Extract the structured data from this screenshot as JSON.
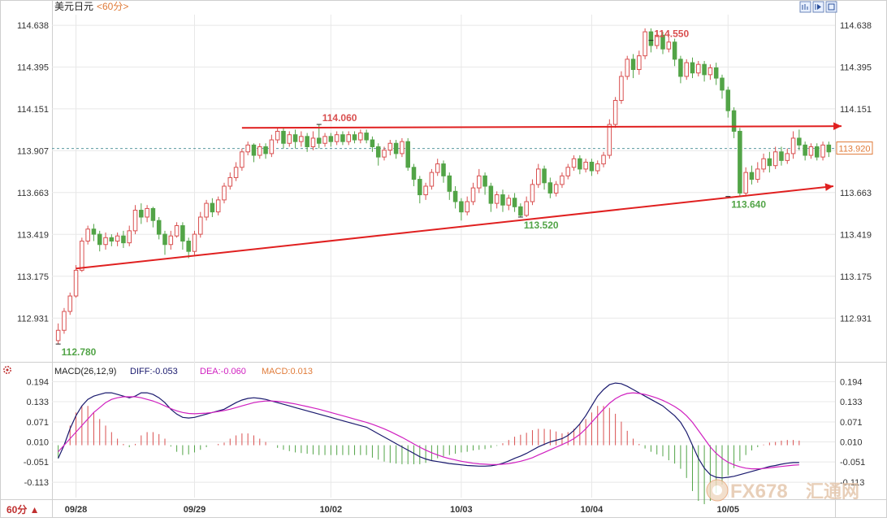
{
  "header": {
    "instrument": "美元日元",
    "period": "<60分>"
  },
  "period_selector": {
    "label": "60分 ▲"
  },
  "watermark": {
    "brand": "FX678",
    "cn": "汇通网"
  },
  "colors": {
    "up": "#d94f4f",
    "down": "#52a447",
    "trendline": "#e02020",
    "diff": "#1a1a6e",
    "dea": "#d020c0",
    "current_price": "#e07b39",
    "dashed": "#5a9aa0",
    "grid": "#e8e8e8",
    "axis_text": "#333333"
  },
  "chart_data": [
    {
      "type": "candlestick",
      "title": "美元日元 <60分>",
      "ylim": [
        112.7,
        114.7
      ],
      "y_ticks": [
        "114.638",
        "114.395",
        "114.151",
        "113.907",
        "113.663",
        "113.419",
        "113.175",
        "112.931"
      ],
      "x_ticks": [
        "09/28",
        "09/29",
        "10/02",
        "10/03",
        "10/04",
        "10/05"
      ],
      "current_price": "113.920",
      "annotations": [
        {
          "label": "112.780",
          "value": 112.78,
          "color": "green"
        },
        {
          "label": "114.060",
          "value": 114.06,
          "color": "red"
        },
        {
          "label": "113.520",
          "value": 113.52,
          "color": "green"
        },
        {
          "label": "114.550",
          "value": 114.55,
          "color": "red"
        },
        {
          "label": "113.640",
          "value": 113.64,
          "color": "green"
        }
      ],
      "trendlines": [
        {
          "name": "resistance",
          "from": 114.04,
          "to": 114.05
        },
        {
          "name": "support",
          "from": 113.22,
          "to": 113.7
        }
      ],
      "candles": [
        [
          112.8,
          112.86,
          112.78,
          112.9
        ],
        [
          112.86,
          112.97,
          112.84,
          112.99
        ],
        [
          112.97,
          113.06,
          112.95,
          113.08
        ],
        [
          113.06,
          113.21,
          113.05,
          113.24
        ],
        [
          113.21,
          113.38,
          113.2,
          113.4
        ],
        [
          113.38,
          113.45,
          113.36,
          113.47
        ],
        [
          113.45,
          113.42,
          113.38,
          113.48
        ],
        [
          113.42,
          113.36,
          113.32,
          113.44
        ],
        [
          113.36,
          113.4,
          113.33,
          113.43
        ],
        [
          113.4,
          113.38,
          113.35,
          113.42
        ],
        [
          113.38,
          113.41,
          113.35,
          113.43
        ],
        [
          113.41,
          113.37,
          113.34,
          113.44
        ],
        [
          113.37,
          113.44,
          113.35,
          113.47
        ],
        [
          113.44,
          113.56,
          113.42,
          113.59
        ],
        [
          113.56,
          113.52,
          113.48,
          113.6
        ],
        [
          113.52,
          113.57,
          113.49,
          113.59
        ],
        [
          113.57,
          113.5,
          113.46,
          113.58
        ],
        [
          113.5,
          113.42,
          113.39,
          113.52
        ],
        [
          113.42,
          113.36,
          113.3,
          113.44
        ],
        [
          113.36,
          113.41,
          113.33,
          113.44
        ],
        [
          113.41,
          113.47,
          113.4,
          113.49
        ],
        [
          113.47,
          113.38,
          113.33,
          113.49
        ],
        [
          113.38,
          113.32,
          113.28,
          113.4
        ],
        [
          113.32,
          113.42,
          113.3,
          113.44
        ],
        [
          113.42,
          113.52,
          113.4,
          113.55
        ],
        [
          113.52,
          113.6,
          113.5,
          113.62
        ],
        [
          113.6,
          113.55,
          113.52,
          113.63
        ],
        [
          113.55,
          113.62,
          113.53,
          113.64
        ],
        [
          113.62,
          113.7,
          113.6,
          113.72
        ],
        [
          113.7,
          113.75,
          113.68,
          113.78
        ],
        [
          113.75,
          113.81,
          113.73,
          113.84
        ],
        [
          113.81,
          113.9,
          113.79,
          113.92
        ],
        [
          113.9,
          113.94,
          113.88,
          113.96
        ],
        [
          113.94,
          113.88,
          113.84,
          113.95
        ],
        [
          113.88,
          113.93,
          113.86,
          113.95
        ],
        [
          113.93,
          113.89,
          113.86,
          113.95
        ],
        [
          113.89,
          113.97,
          113.87,
          114.0
        ],
        [
          113.97,
          114.02,
          113.95,
          114.04
        ],
        [
          114.02,
          113.95,
          113.92,
          114.04
        ],
        [
          113.95,
          114.0,
          113.93,
          114.02
        ],
        [
          114.0,
          113.96,
          113.92,
          114.03
        ],
        [
          113.96,
          113.99,
          113.93,
          114.02
        ],
        [
          113.99,
          113.93,
          113.9,
          114.01
        ],
        [
          113.93,
          113.98,
          113.91,
          114.02
        ],
        [
          113.98,
          113.95,
          113.92,
          114.06
        ],
        [
          113.95,
          113.99,
          113.93,
          114.01
        ],
        [
          113.99,
          113.96,
          113.93,
          114.01
        ],
        [
          113.96,
          114.0,
          113.94,
          114.02
        ],
        [
          114.0,
          113.96,
          113.94,
          114.02
        ],
        [
          113.96,
          114.0,
          113.94,
          114.02
        ],
        [
          114.0,
          113.97,
          113.95,
          114.02
        ],
        [
          113.97,
          114.01,
          113.95,
          114.03
        ],
        [
          114.01,
          113.97,
          113.95,
          114.03
        ],
        [
          113.97,
          113.93,
          113.9,
          113.99
        ],
        [
          113.93,
          113.87,
          113.82,
          113.95
        ],
        [
          113.87,
          113.91,
          113.85,
          113.93
        ],
        [
          113.91,
          113.95,
          113.88,
          113.97
        ],
        [
          113.95,
          113.89,
          113.86,
          113.97
        ],
        [
          113.89,
          113.96,
          113.87,
          113.98
        ],
        [
          113.96,
          113.81,
          113.79,
          113.98
        ],
        [
          113.81,
          113.74,
          113.7,
          113.83
        ],
        [
          113.74,
          113.65,
          113.6,
          113.76
        ],
        [
          113.65,
          113.7,
          113.62,
          113.72
        ],
        [
          113.7,
          113.78,
          113.68,
          113.8
        ],
        [
          113.78,
          113.83,
          113.76,
          113.86
        ],
        [
          113.83,
          113.76,
          113.72,
          113.85
        ],
        [
          113.76,
          113.67,
          113.62,
          113.78
        ],
        [
          113.67,
          113.61,
          113.57,
          113.7
        ],
        [
          113.61,
          113.55,
          113.5,
          113.63
        ],
        [
          113.55,
          113.61,
          113.53,
          113.64
        ],
        [
          113.61,
          113.69,
          113.59,
          113.72
        ],
        [
          113.69,
          113.76,
          113.66,
          113.8
        ],
        [
          113.76,
          113.7,
          113.65,
          113.78
        ],
        [
          113.7,
          113.6,
          113.55,
          113.72
        ],
        [
          113.6,
          113.65,
          113.57,
          113.67
        ],
        [
          113.65,
          113.59,
          113.55,
          113.68
        ],
        [
          113.59,
          113.63,
          113.56,
          113.65
        ],
        [
          113.63,
          113.58,
          113.55,
          113.66
        ],
        [
          113.58,
          113.53,
          113.52,
          113.6
        ],
        [
          113.53,
          113.61,
          113.52,
          113.64
        ],
        [
          113.61,
          113.71,
          113.59,
          113.74
        ],
        [
          113.71,
          113.8,
          113.69,
          113.83
        ],
        [
          113.8,
          113.72,
          113.68,
          113.82
        ],
        [
          113.72,
          113.66,
          113.63,
          113.75
        ],
        [
          113.66,
          113.71,
          113.64,
          113.73
        ],
        [
          113.71,
          113.76,
          113.69,
          113.78
        ],
        [
          113.76,
          113.81,
          113.74,
          113.83
        ],
        [
          113.81,
          113.86,
          113.79,
          113.88
        ],
        [
          113.86,
          113.8,
          113.77,
          113.88
        ],
        [
          113.8,
          113.84,
          113.78,
          113.86
        ],
        [
          113.84,
          113.79,
          113.76,
          113.86
        ],
        [
          113.79,
          113.83,
          113.77,
          113.85
        ],
        [
          113.83,
          113.88,
          113.81,
          113.9
        ],
        [
          113.88,
          114.06,
          113.86,
          114.09
        ],
        [
          114.06,
          114.2,
          114.04,
          114.22
        ],
        [
          114.2,
          114.34,
          114.18,
          114.37
        ],
        [
          114.34,
          114.44,
          114.32,
          114.46
        ],
        [
          114.44,
          114.38,
          114.33,
          114.47
        ],
        [
          114.38,
          114.46,
          114.35,
          114.49
        ],
        [
          114.46,
          114.6,
          114.44,
          114.62
        ],
        [
          114.6,
          114.52,
          114.48,
          114.62
        ],
        [
          114.52,
          114.58,
          114.5,
          114.6
        ],
        [
          114.58,
          114.5,
          114.47,
          114.6
        ],
        [
          114.5,
          114.54,
          114.48,
          114.57
        ],
        [
          114.54,
          114.44,
          114.4,
          114.56
        ],
        [
          114.44,
          114.34,
          114.3,
          114.46
        ],
        [
          114.34,
          114.42,
          114.32,
          114.44
        ],
        [
          114.42,
          114.36,
          114.33,
          114.45
        ],
        [
          114.36,
          114.41,
          114.34,
          114.43
        ],
        [
          114.41,
          114.35,
          114.31,
          114.43
        ],
        [
          114.35,
          114.39,
          114.32,
          114.41
        ],
        [
          114.39,
          114.33,
          114.29,
          114.42
        ],
        [
          114.33,
          114.26,
          114.21,
          114.35
        ],
        [
          114.26,
          114.14,
          114.1,
          114.28
        ],
        [
          114.14,
          114.02,
          113.98,
          114.16
        ],
        [
          114.02,
          113.66,
          113.64,
          114.04
        ],
        [
          113.66,
          113.78,
          113.64,
          113.81
        ],
        [
          113.78,
          113.74,
          113.71,
          113.82
        ],
        [
          113.74,
          113.8,
          113.72,
          113.84
        ],
        [
          113.8,
          113.86,
          113.78,
          113.89
        ],
        [
          113.86,
          113.82,
          113.78,
          113.9
        ],
        [
          113.82,
          113.9,
          113.8,
          113.93
        ],
        [
          113.9,
          113.85,
          113.82,
          113.93
        ],
        [
          113.85,
          113.89,
          113.83,
          113.92
        ],
        [
          113.89,
          113.98,
          113.86,
          114.02
        ],
        [
          113.98,
          113.94,
          113.91,
          114.03
        ],
        [
          113.94,
          113.88,
          113.85,
          113.96
        ],
        [
          113.88,
          113.93,
          113.86,
          113.95
        ],
        [
          113.93,
          113.87,
          113.85,
          113.95
        ],
        [
          113.87,
          113.94,
          113.85,
          113.96
        ],
        [
          113.94,
          113.9,
          113.87,
          113.96
        ]
      ]
    },
    {
      "type": "macd",
      "title": "MACD(26,12,9)",
      "params": "(26,12,9)",
      "labels": {
        "diff": "DIFF:-0.053",
        "dea": "DEA:-0.060",
        "macd": "MACD:0.013"
      },
      "ylim": [
        -0.16,
        0.21
      ],
      "y_ticks": [
        "0.194",
        "0.133",
        "0.071",
        "0.010",
        "-0.051",
        "-0.113"
      ],
      "diff": [
        -0.04,
        0.0,
        0.05,
        0.09,
        0.12,
        0.14,
        0.15,
        0.155,
        0.16,
        0.16,
        0.155,
        0.15,
        0.145,
        0.15,
        0.16,
        0.16,
        0.155,
        0.145,
        0.13,
        0.11,
        0.095,
        0.085,
        0.083,
        0.085,
        0.09,
        0.095,
        0.1,
        0.105,
        0.11,
        0.12,
        0.13,
        0.138,
        0.143,
        0.145,
        0.143,
        0.14,
        0.135,
        0.13,
        0.125,
        0.12,
        0.115,
        0.11,
        0.105,
        0.1,
        0.095,
        0.09,
        0.085,
        0.08,
        0.075,
        0.07,
        0.065,
        0.06,
        0.055,
        0.045,
        0.035,
        0.025,
        0.015,
        0.005,
        -0.005,
        -0.015,
        -0.025,
        -0.035,
        -0.042,
        -0.047,
        -0.05,
        -0.053,
        -0.056,
        -0.058,
        -0.06,
        -0.062,
        -0.063,
        -0.064,
        -0.064,
        -0.063,
        -0.06,
        -0.055,
        -0.048,
        -0.04,
        -0.033,
        -0.025,
        -0.015,
        -0.005,
        0.003,
        0.01,
        0.015,
        0.02,
        0.03,
        0.045,
        0.065,
        0.09,
        0.12,
        0.15,
        0.17,
        0.185,
        0.19,
        0.188,
        0.18,
        0.17,
        0.16,
        0.15,
        0.14,
        0.13,
        0.12,
        0.105,
        0.09,
        0.07,
        0.04,
        0.0,
        -0.04,
        -0.07,
        -0.09,
        -0.098,
        -0.1,
        -0.098,
        -0.095,
        -0.09,
        -0.085,
        -0.08,
        -0.075,
        -0.07,
        -0.065,
        -0.062,
        -0.058,
        -0.055,
        -0.053,
        -0.053
      ],
      "dea": [
        -0.02,
        0.0,
        0.02,
        0.04,
        0.06,
        0.08,
        0.1,
        0.115,
        0.13,
        0.14,
        0.145,
        0.148,
        0.148,
        0.148,
        0.145,
        0.14,
        0.135,
        0.128,
        0.12,
        0.112,
        0.105,
        0.1,
        0.097,
        0.096,
        0.097,
        0.098,
        0.1,
        0.103,
        0.106,
        0.11,
        0.115,
        0.12,
        0.125,
        0.13,
        0.133,
        0.135,
        0.135,
        0.134,
        0.132,
        0.129,
        0.126,
        0.122,
        0.118,
        0.114,
        0.11,
        0.105,
        0.1,
        0.095,
        0.09,
        0.085,
        0.08,
        0.075,
        0.07,
        0.064,
        0.057,
        0.05,
        0.042,
        0.033,
        0.024,
        0.014,
        0.004,
        -0.006,
        -0.015,
        -0.023,
        -0.03,
        -0.036,
        -0.041,
        -0.045,
        -0.049,
        -0.052,
        -0.055,
        -0.057,
        -0.058,
        -0.059,
        -0.059,
        -0.058,
        -0.056,
        -0.053,
        -0.049,
        -0.044,
        -0.038,
        -0.03,
        -0.022,
        -0.014,
        -0.006,
        0.002,
        0.01,
        0.02,
        0.033,
        0.05,
        0.07,
        0.09,
        0.11,
        0.128,
        0.142,
        0.152,
        0.158,
        0.16,
        0.158,
        0.155,
        0.15,
        0.144,
        0.137,
        0.128,
        0.118,
        0.106,
        0.09,
        0.07,
        0.045,
        0.02,
        -0.005,
        -0.025,
        -0.04,
        -0.052,
        -0.06,
        -0.066,
        -0.07,
        -0.072,
        -0.072,
        -0.071,
        -0.069,
        -0.067,
        -0.065,
        -0.063,
        -0.061,
        -0.06
      ]
    }
  ]
}
